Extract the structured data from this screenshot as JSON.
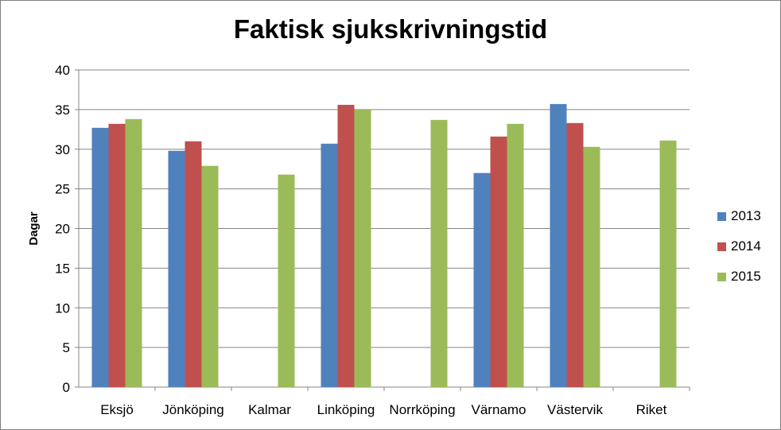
{
  "chart_data": {
    "type": "bar",
    "title": "Faktisk sjukskrivningstid",
    "xlabel": "",
    "ylabel": "Dagar",
    "ylim": [
      0,
      40
    ],
    "yticks": [
      0,
      5,
      10,
      15,
      20,
      25,
      30,
      35,
      40
    ],
    "grid": true,
    "legend_position": "right",
    "categories": [
      "Eksjö",
      "Jönköping",
      "Kalmar",
      "Linköping",
      "Norrköping",
      "Värnamo",
      "Västervik",
      "Riket"
    ],
    "series": [
      {
        "name": "2013",
        "color": "#4f81bd",
        "values": [
          32.7,
          29.8,
          null,
          30.7,
          null,
          27.0,
          35.7,
          null
        ]
      },
      {
        "name": "2014",
        "color": "#c0504d",
        "values": [
          33.2,
          31.0,
          null,
          35.6,
          null,
          31.6,
          33.3,
          null
        ]
      },
      {
        "name": "2015",
        "color": "#9bbb59",
        "values": [
          33.8,
          27.9,
          26.8,
          35.0,
          33.7,
          33.2,
          30.3,
          31.1
        ]
      }
    ]
  }
}
